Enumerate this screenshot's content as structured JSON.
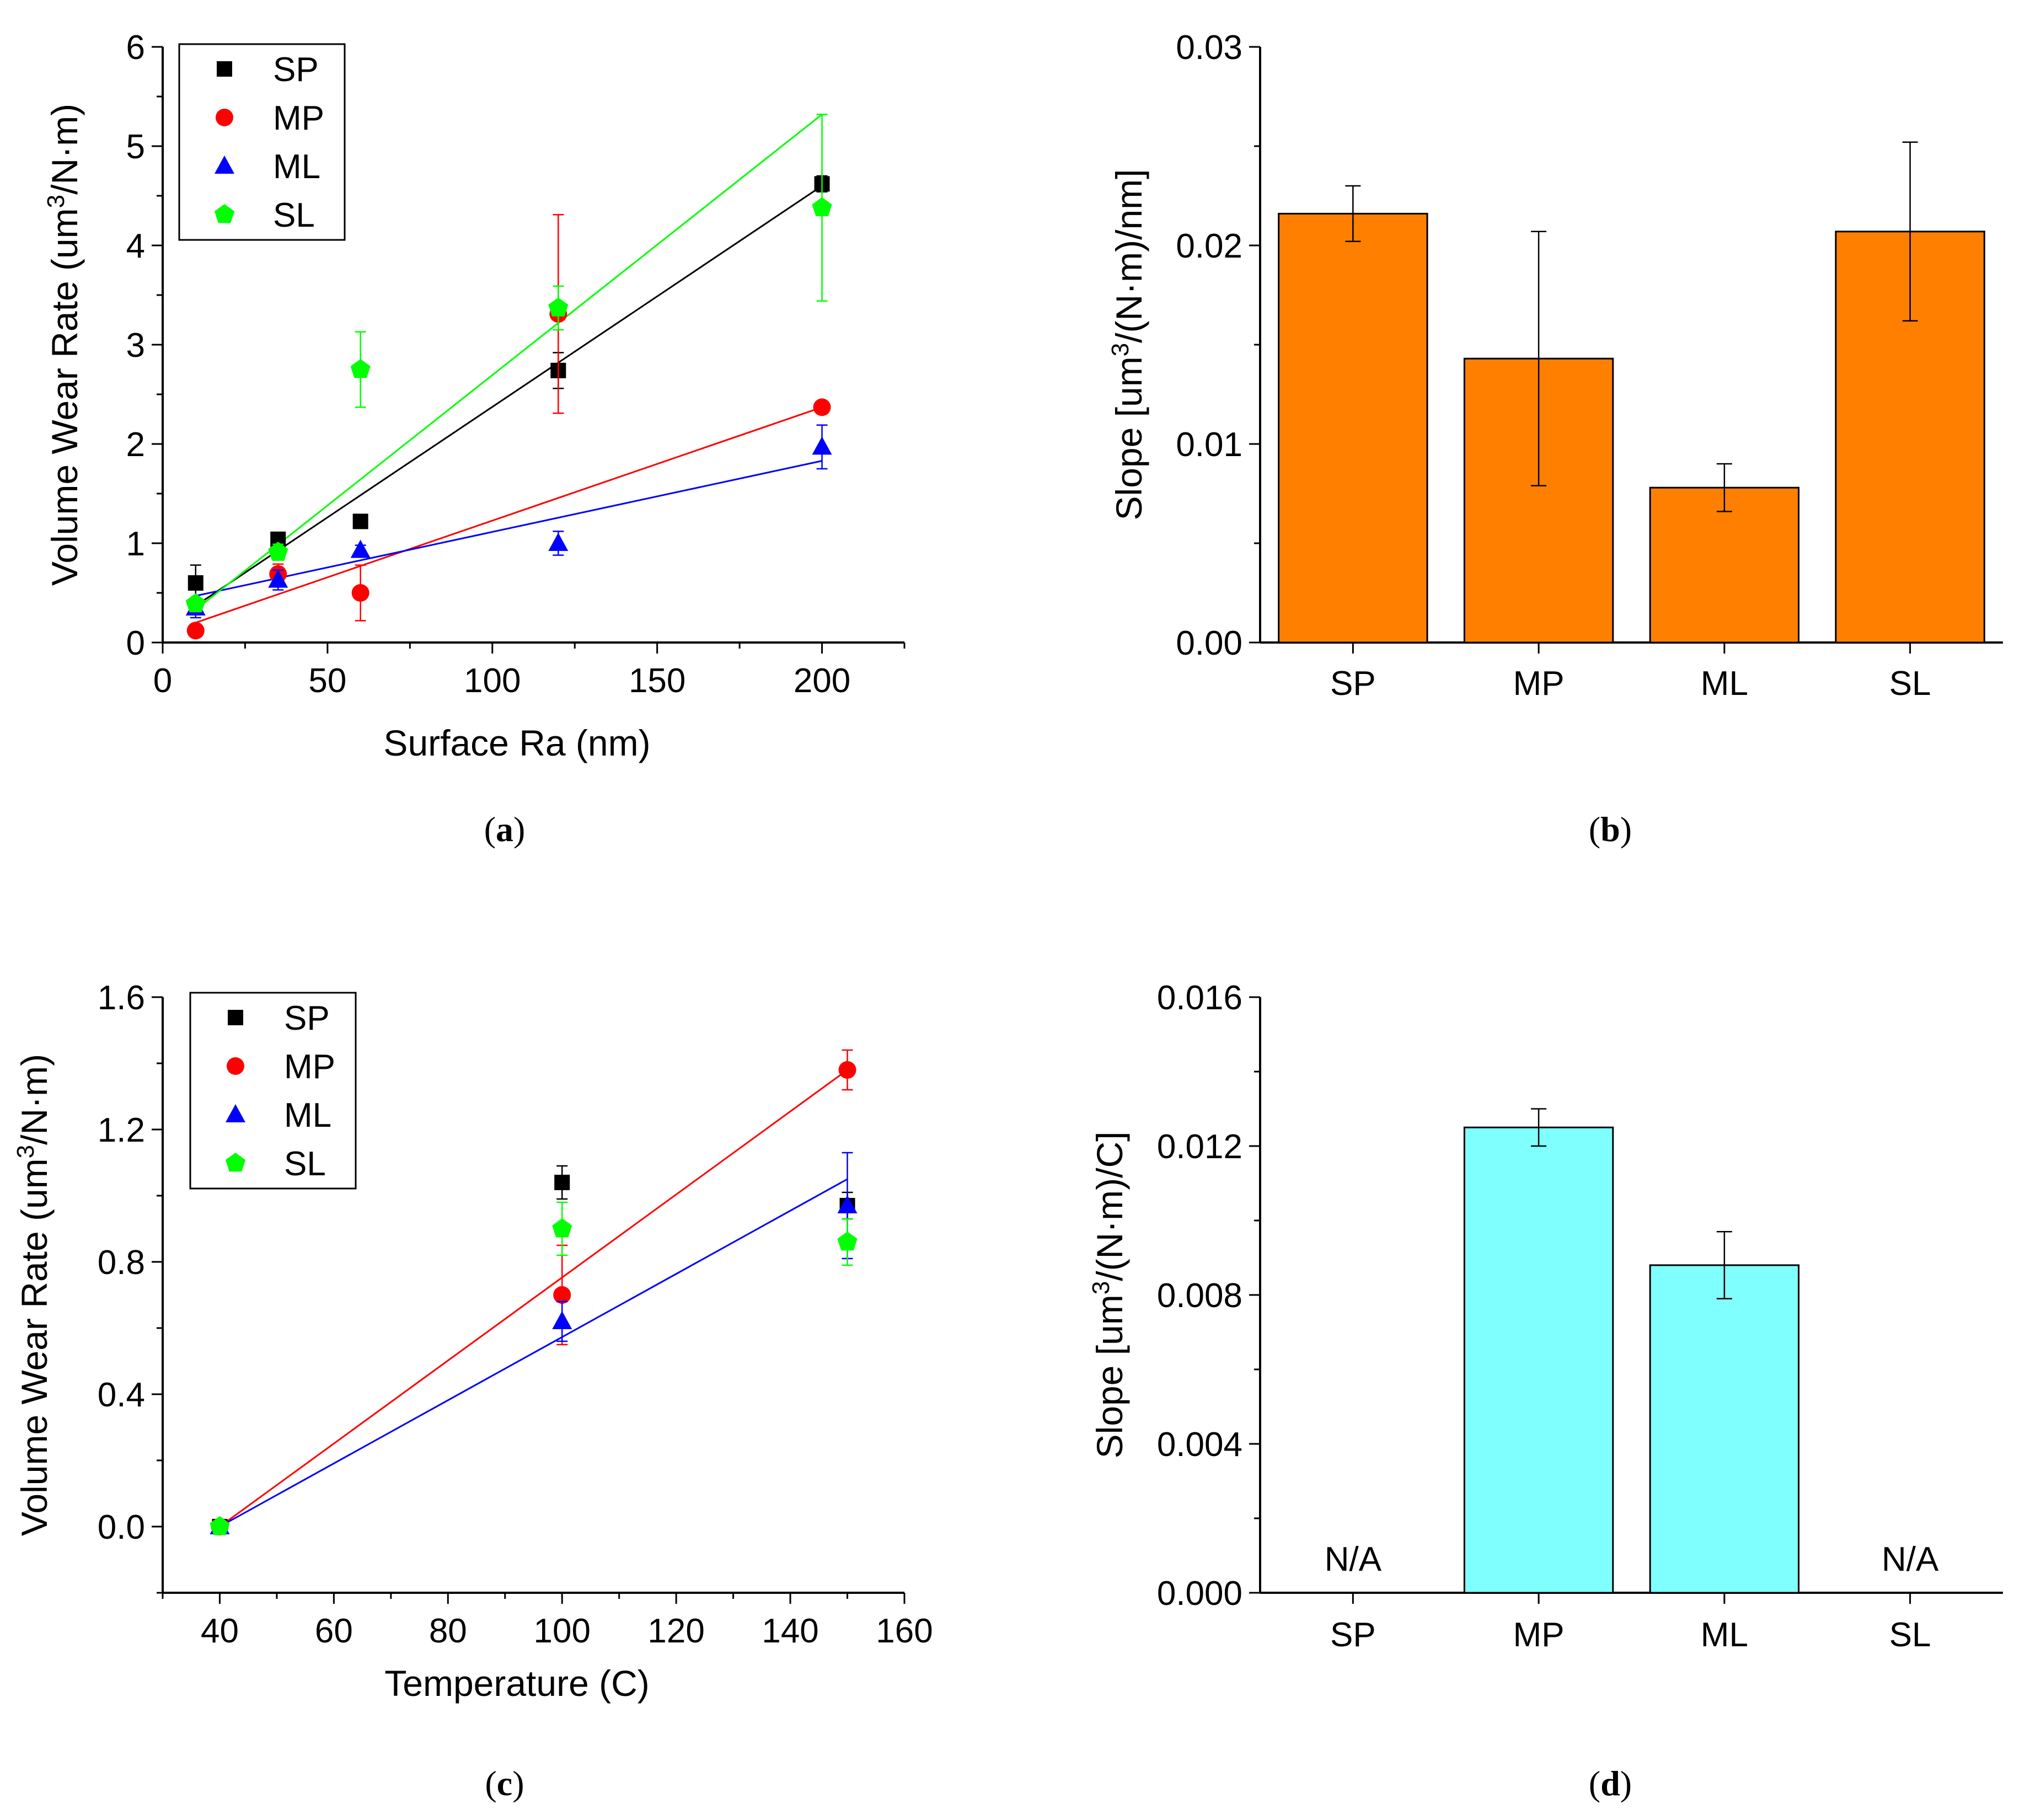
{
  "chart_data": [
    {
      "panel": "a",
      "caption_letter": "a",
      "type": "scatter",
      "xlabel": "Surface Ra (nm)",
      "ylabel_main": "Volume Wear Rate (um",
      "ylabel_sup": "3",
      "ylabel_tail": "/N·m)",
      "xlim": [
        0,
        225
      ],
      "ylim": [
        0,
        6
      ],
      "xticks": [
        0,
        50,
        100,
        150,
        200
      ],
      "yticks": [
        0,
        1,
        2,
        3,
        4,
        5,
        6
      ],
      "legend_position": "top-left",
      "series": [
        {
          "name": "SP",
          "color": "#000000",
          "marker": "square",
          "x": [
            10,
            35,
            60,
            120,
            200
          ],
          "y": [
            0.6,
            1.04,
            1.22,
            2.74,
            4.62
          ],
          "err": [
            0.18,
            0.05,
            0.05,
            0.18,
            0.08
          ],
          "fit": [
            [
              10,
              0.37
            ],
            [
              200,
              4.6
            ]
          ]
        },
        {
          "name": "MP",
          "color": "#ff0000",
          "marker": "circle",
          "x": [
            10,
            35,
            60,
            120,
            200
          ],
          "y": [
            0.12,
            0.69,
            0.5,
            3.31,
            2.37
          ],
          "err": [
            0.05,
            0.1,
            0.28,
            1.0,
            0.05
          ],
          "fit": [
            [
              10,
              0.2
            ],
            [
              200,
              2.37
            ]
          ]
        },
        {
          "name": "ML",
          "color": "#0000ff",
          "marker": "triangle",
          "x": [
            10,
            35,
            60,
            120,
            200
          ],
          "y": [
            0.35,
            0.63,
            0.93,
            1.0,
            1.97
          ],
          "err": [
            0.1,
            0.1,
            0.05,
            0.12,
            0.22
          ],
          "fit": [
            [
              10,
              0.47
            ],
            [
              200,
              1.83
            ]
          ]
        },
        {
          "name": "SL",
          "color": "#00ff00",
          "marker": "pentagon",
          "x": [
            10,
            35,
            60,
            120,
            200
          ],
          "y": [
            0.39,
            0.91,
            2.75,
            3.37,
            4.38
          ],
          "err": [
            0.05,
            0.08,
            0.38,
            0.22,
            0.94
          ],
          "fit": [
            [
              10,
              0.33
            ],
            [
              200,
              5.32
            ]
          ]
        }
      ]
    },
    {
      "panel": "b",
      "caption_letter": "b",
      "type": "bar",
      "ylabel_main": "Slope [um",
      "ylabel_sup": "3",
      "ylabel_tail": "/(N·m)/nm]",
      "categories": [
        "SP",
        "MP",
        "ML",
        "SL"
      ],
      "values": [
        0.0216,
        0.0143,
        0.0078,
        0.0207
      ],
      "errors": [
        0.0014,
        0.0064,
        0.0012,
        0.0045
      ],
      "na_labels": [
        "",
        "",
        "",
        ""
      ],
      "ylim": [
        0,
        0.03
      ],
      "yticks": [
        "0.00",
        "0.01",
        "0.02",
        "0.03"
      ],
      "bar_color": "#ff8000"
    },
    {
      "panel": "c",
      "caption_letter": "c",
      "type": "scatter",
      "xlabel": "Temperature (C)",
      "ylabel_main": "Volume Wear Rate (um",
      "ylabel_sup": "3",
      "ylabel_tail": "/N·m)",
      "xlim": [
        30,
        160
      ],
      "ylim": [
        -0.2,
        1.6
      ],
      "xticks": [
        40,
        60,
        80,
        100,
        120,
        140,
        160
      ],
      "yticks": [
        "0.0",
        "0.4",
        "0.8",
        "1.2",
        "1.6"
      ],
      "legend_position": "top-left",
      "series": [
        {
          "name": "SP",
          "color": "#000000",
          "marker": "square",
          "x": [
            40,
            100,
            150
          ],
          "y": [
            0.0,
            1.04,
            0.97
          ],
          "err": [
            0.0,
            0.05,
            0.04
          ],
          "fit": null
        },
        {
          "name": "MP",
          "color": "#ff0000",
          "marker": "circle",
          "x": [
            40,
            100,
            150
          ],
          "y": [
            0.0,
            0.7,
            1.38
          ],
          "err": [
            0.0,
            0.15,
            0.06
          ],
          "fit": [
            [
              40,
              0.0
            ],
            [
              150,
              1.38
            ]
          ]
        },
        {
          "name": "ML",
          "color": "#0000ff",
          "marker": "triangle",
          "x": [
            40,
            100,
            150
          ],
          "y": [
            0.0,
            0.62,
            0.97
          ],
          "err": [
            0.0,
            0.06,
            0.16
          ],
          "fit": [
            [
              40,
              0.0
            ],
            [
              150,
              1.05
            ]
          ]
        },
        {
          "name": "SL",
          "color": "#00ff00",
          "marker": "pentagon",
          "x": [
            40,
            100,
            150
          ],
          "y": [
            0.0,
            0.9,
            0.86
          ],
          "err": [
            0.0,
            0.08,
            0.07
          ],
          "fit": null
        }
      ]
    },
    {
      "panel": "d",
      "caption_letter": "d",
      "type": "bar",
      "ylabel_main": "Slope [um",
      "ylabel_sup": "3",
      "ylabel_tail": "/(N·m)/C]",
      "categories": [
        "SP",
        "MP",
        "ML",
        "SL"
      ],
      "values": [
        null,
        0.0125,
        0.0088,
        null
      ],
      "errors": [
        null,
        0.0005,
        0.0009,
        null
      ],
      "na_labels": [
        "N/A",
        "",
        "",
        "N/A"
      ],
      "ylim": [
        0,
        0.016
      ],
      "yticks": [
        "0.000",
        "0.004",
        "0.008",
        "0.012",
        "0.016"
      ],
      "bar_color": "#80ffff"
    }
  ]
}
